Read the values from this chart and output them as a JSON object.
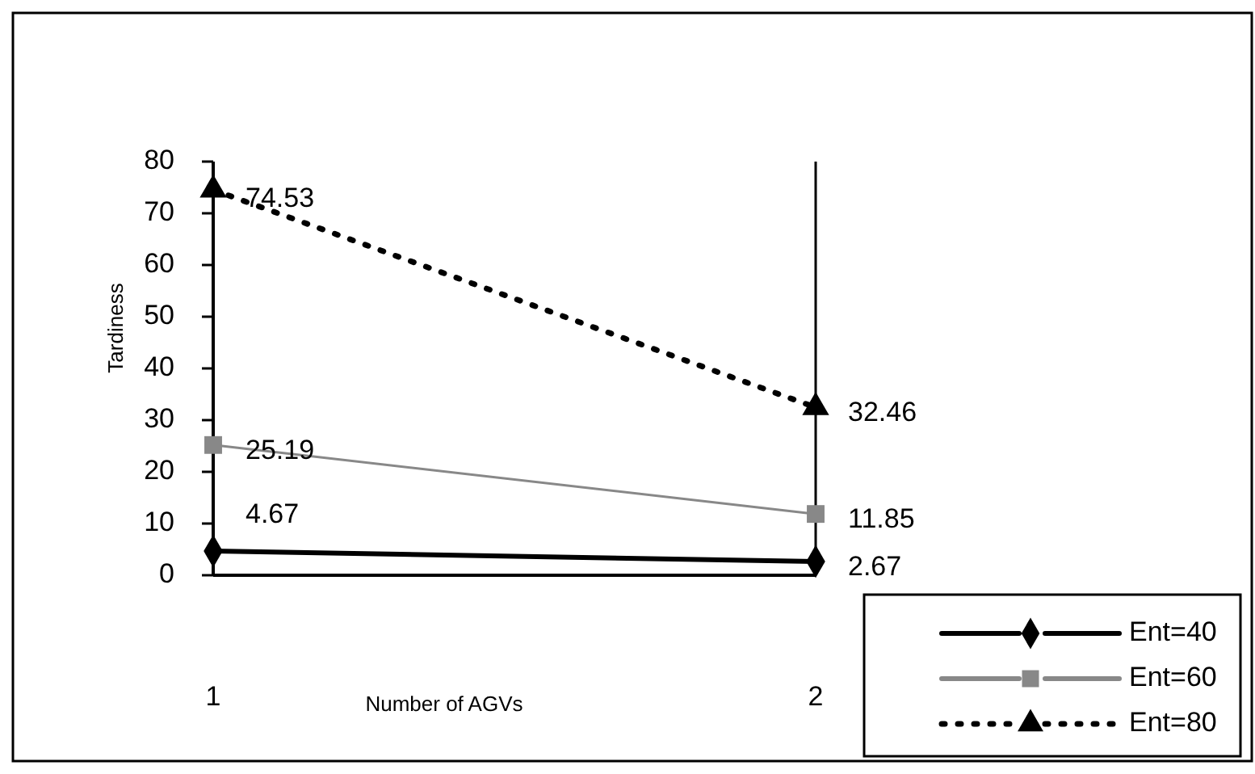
{
  "chart_data": {
    "type": "line",
    "xlabel": "Number of AGVs",
    "ylabel": "Tardiness",
    "categories": [
      "1",
      "2"
    ],
    "ylim": [
      0,
      80
    ],
    "yticks": [
      0,
      10,
      20,
      30,
      40,
      50,
      60,
      70,
      80
    ],
    "data_labels": true,
    "legend": "bottom right",
    "grid": "x",
    "series": [
      {
        "name": "Ent=40",
        "color": "#000000",
        "values": [
          4.67,
          2.67
        ],
        "marker": "diamond",
        "line_style": "solid"
      },
      {
        "name": "Ent=60",
        "color": "#888888",
        "values": [
          25.19,
          11.85
        ],
        "marker": "square",
        "line_style": "solid"
      },
      {
        "name": "Ent=80",
        "color": "#000000",
        "values": [
          74.53,
          32.46
        ],
        "marker": "triangle",
        "line_style": "dotted"
      }
    ]
  }
}
